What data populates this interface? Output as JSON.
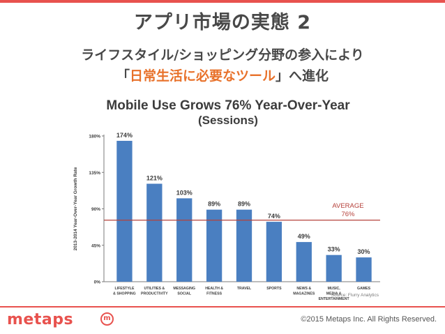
{
  "slide": {
    "title": "アプリ市場の実態 2",
    "subtitle_line1": "ライフスタイル/ショッピング分野の参入により",
    "subtitle_line2_open": "「",
    "subtitle_line2_highlight": "日常生活に必要なツール",
    "subtitle_line2_close": "」へ進化",
    "accent_color": "#e8524e",
    "highlight_color": "#e8712a"
  },
  "footer": {
    "logo_text": "metaps",
    "logo_mark": "m",
    "copyright": "©2015 Metaps Inc. All Rights Reserved."
  },
  "chart_data": {
    "type": "bar",
    "title": "Mobile Use Grows 76% Year-Over-Year",
    "subtitle": "(Sessions)",
    "ylabel": "2013-2014 Year-Over-Year Growth Rate",
    "xlabel": "",
    "ylim": [
      0,
      180
    ],
    "yticks": [
      "0%",
      "45%",
      "90%",
      "135%",
      "180%"
    ],
    "ytick_values": [
      0,
      45,
      90,
      135,
      180
    ],
    "categories": [
      [
        "LIFESTYLE",
        "& SHOPPING"
      ],
      [
        "UTILITIES &",
        "PRODUCTIVITY"
      ],
      [
        "MESSAGING",
        "SOCIAL"
      ],
      [
        "HEALTH &",
        "FITNESS"
      ],
      [
        "TRAVEL"
      ],
      [
        "SPORTS"
      ],
      [
        "NEWS &",
        "MAGAZINES"
      ],
      [
        "MUSIC,",
        "MEDIA &",
        "ENTERTAINMENT"
      ],
      [
        "GAMES"
      ]
    ],
    "values": [
      174,
      121,
      103,
      89,
      89,
      74,
      49,
      33,
      30
    ],
    "value_labels": [
      "174%",
      "121%",
      "103%",
      "89%",
      "89%",
      "74%",
      "49%",
      "33%",
      "30%"
    ],
    "average": {
      "value": 76,
      "label_line1": "AVERAGE",
      "label_line2": "76%"
    },
    "source": "Source: Flurry Analytics",
    "bar_color": "#4a7fc1",
    "average_color": "#b5403a",
    "grid": false
  }
}
